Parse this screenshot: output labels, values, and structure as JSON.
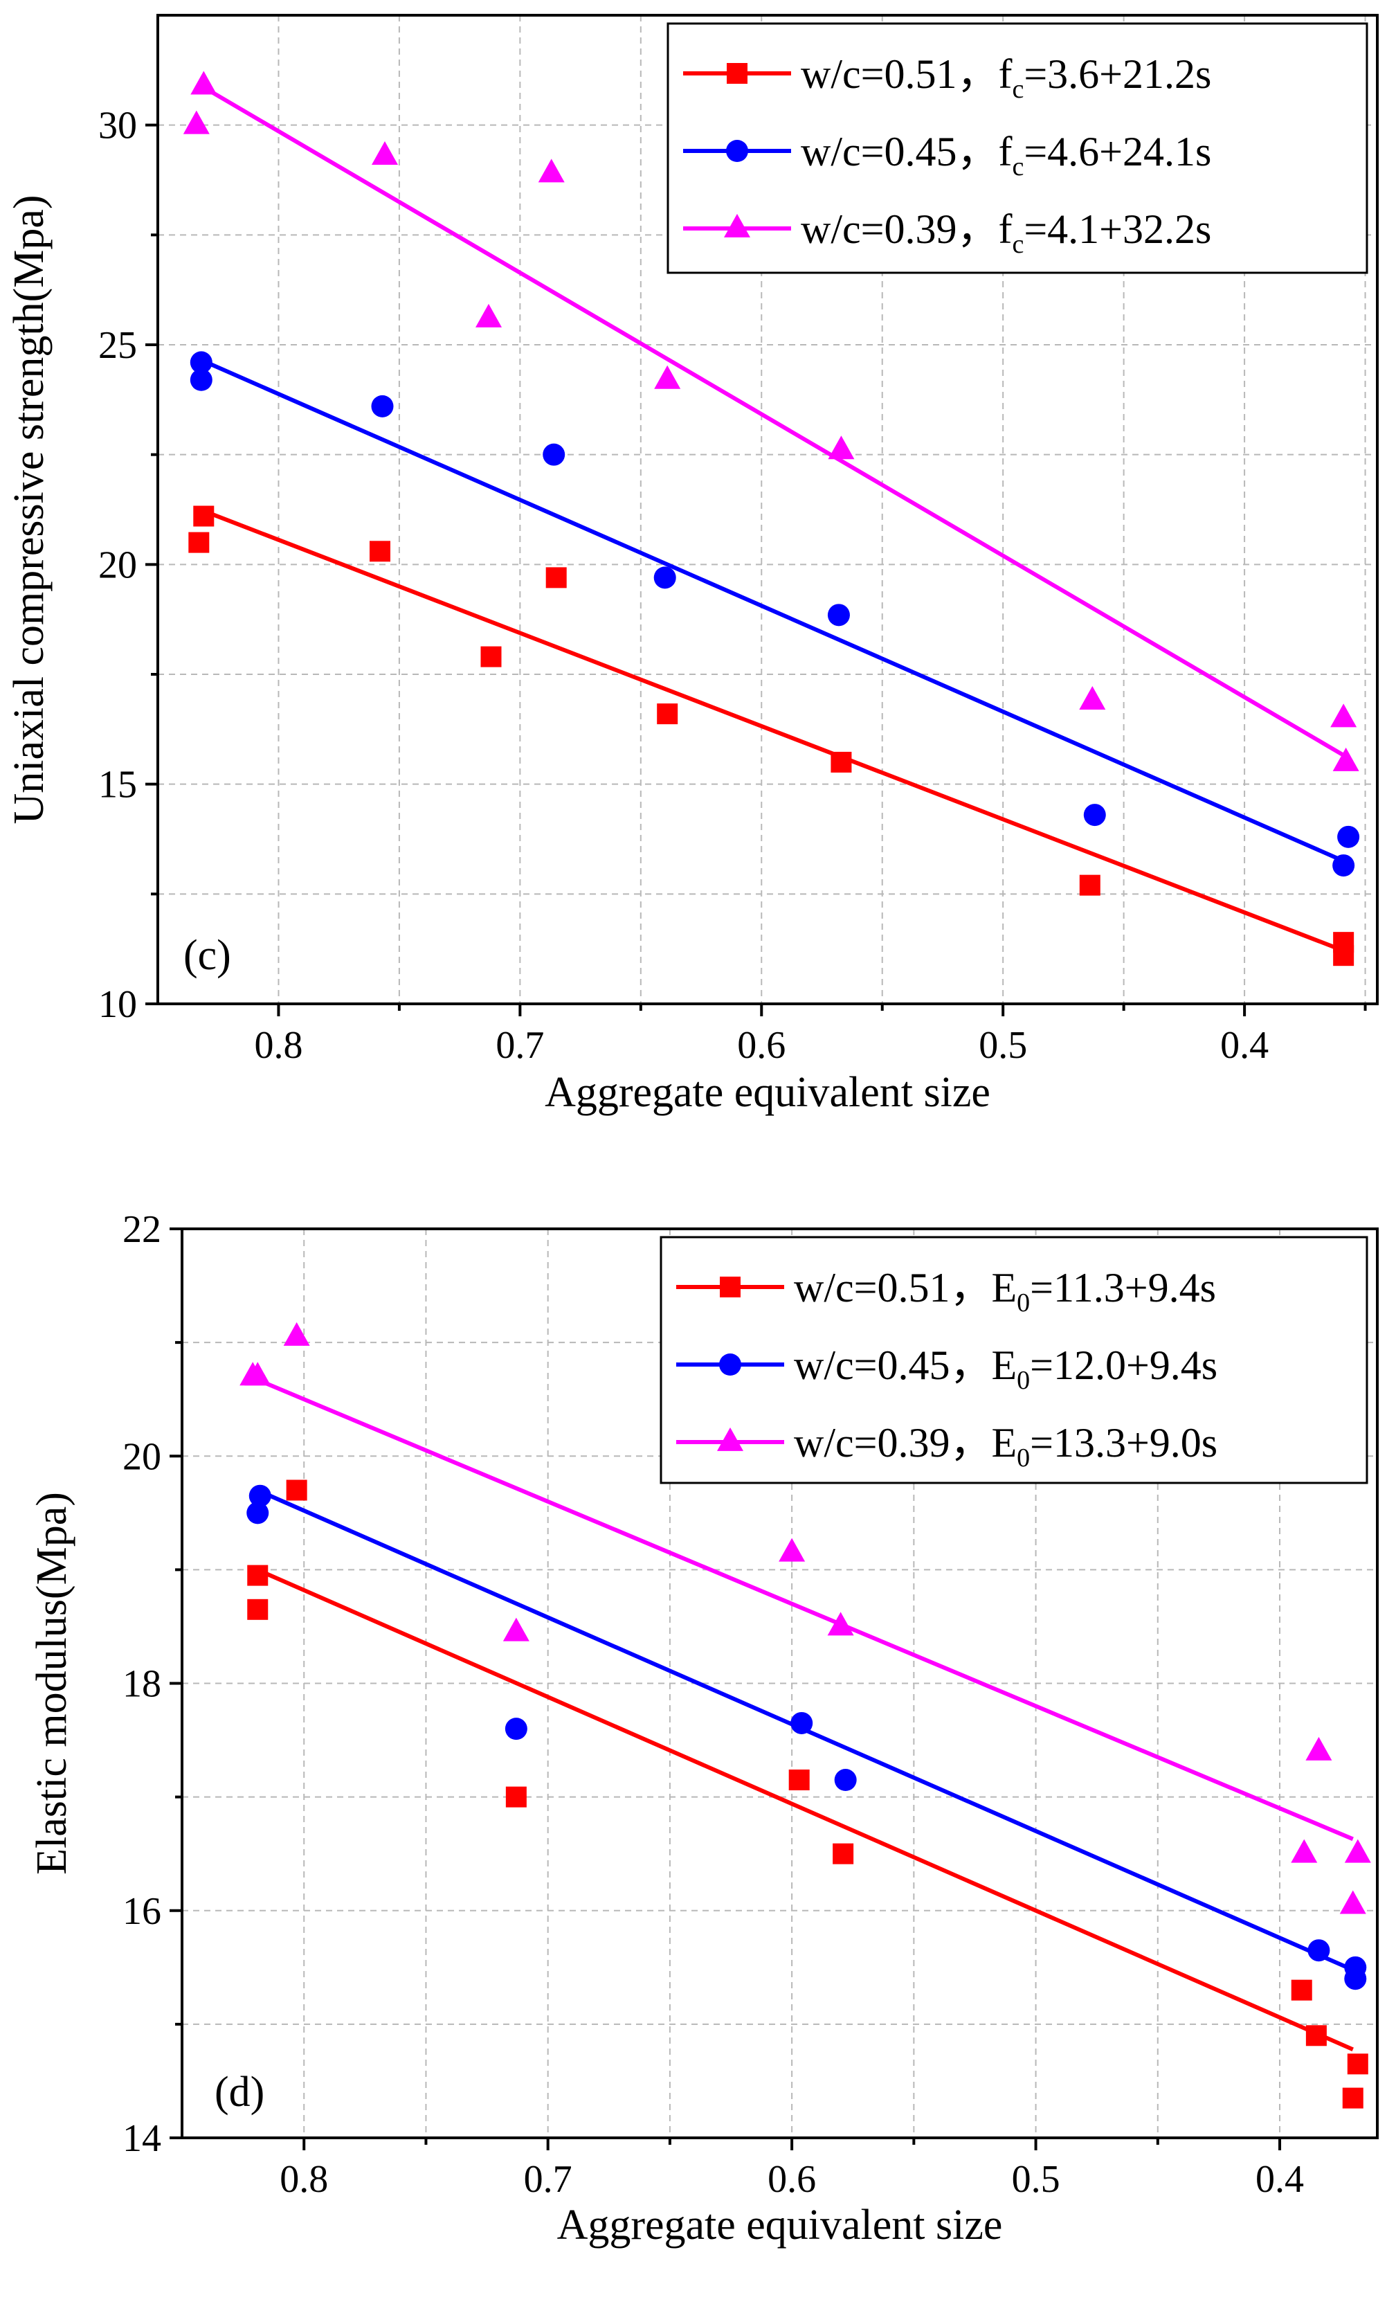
{
  "chart_data": [
    {
      "type": "scatter",
      "panel_label": "(c)",
      "xlabel": "Aggregate equivalent size",
      "ylabel": "Uniaxial compressive strength(Mpa)",
      "xlim": [
        0.85,
        0.345
      ],
      "ylim": [
        10,
        32.5
      ],
      "x_ticks": [
        0.8,
        0.7,
        0.6,
        0.5,
        0.4
      ],
      "x_tick_labels": [
        "0.8",
        "0.7",
        "0.6",
        "0.5",
        "0.4"
      ],
      "y_ticks": [
        10,
        15,
        20,
        25,
        30
      ],
      "y_tick_labels": [
        "10",
        "15",
        "20",
        "25",
        "30"
      ],
      "legend_position": "top-right",
      "series": [
        {
          "name": "w/c=0.51",
          "marker": "square",
          "color": "#ff0000",
          "legend": {
            "prefix": "w/c=0.51，",
            "var": "f",
            "sub": "c",
            "eq": "=3.6+21.2s"
          },
          "points": [
            [
              0.833,
              20.5
            ],
            [
              0.831,
              21.1
            ],
            [
              0.758,
              20.3
            ],
            [
              0.712,
              17.9
            ],
            [
              0.685,
              19.7
            ],
            [
              0.639,
              16.6
            ],
            [
              0.567,
              15.5
            ],
            [
              0.464,
              12.7
            ],
            [
              0.359,
              11.4
            ],
            [
              0.359,
              11.1
            ]
          ],
          "fit": {
            "intercept": 3.6,
            "slope": 21.2,
            "x_range": [
              0.831,
              0.359
            ]
          }
        },
        {
          "name": "w/c=0.45",
          "marker": "circle",
          "color": "#0000ff",
          "legend": {
            "prefix": "w/c=0.45，",
            "var": "f",
            "sub": "c",
            "eq": "=4.6+24.1s"
          },
          "points": [
            [
              0.832,
              24.6
            ],
            [
              0.832,
              24.2
            ],
            [
              0.757,
              23.6
            ],
            [
              0.686,
              22.5
            ],
            [
              0.64,
              19.7
            ],
            [
              0.568,
              18.85
            ],
            [
              0.462,
              14.3
            ],
            [
              0.357,
              13.8
            ],
            [
              0.359,
              13.15
            ]
          ],
          "fit": {
            "intercept": 4.6,
            "slope": 24.1,
            "x_range": [
              0.831,
              0.359
            ]
          }
        },
        {
          "name": "w/c=0.39",
          "marker": "triangle",
          "color": "#ff00ff",
          "legend": {
            "prefix": "w/c=0.39，",
            "var": "f",
            "sub": "c",
            "eq": "=4.1+32.2s"
          },
          "points": [
            [
              0.834,
              30.0
            ],
            [
              0.831,
              30.9
            ],
            [
              0.756,
              29.3
            ],
            [
              0.713,
              25.6
            ],
            [
              0.687,
              28.9
            ],
            [
              0.639,
              24.2
            ],
            [
              0.567,
              22.6
            ],
            [
              0.463,
              16.9
            ],
            [
              0.359,
              16.5
            ],
            [
              0.358,
              15.5
            ]
          ],
          "fit": {
            "intercept": 4.1,
            "slope": 32.2,
            "x_range": [
              0.831,
              0.359
            ]
          }
        }
      ]
    },
    {
      "type": "scatter",
      "panel_label": "(d)",
      "xlabel": "Aggregate equivalent size",
      "ylabel": "Elastic modulus(Mpa)",
      "xlim": [
        0.85,
        0.36
      ],
      "ylim": [
        14,
        22
      ],
      "x_ticks": [
        0.8,
        0.7,
        0.6,
        0.5,
        0.4
      ],
      "x_tick_labels": [
        "0.8",
        "0.7",
        "0.6",
        "0.5",
        "0.4"
      ],
      "y_ticks": [
        14,
        16,
        18,
        20,
        22
      ],
      "y_tick_labels": [
        "14",
        "16",
        "18",
        "20",
        "22"
      ],
      "legend_position": "top-right",
      "series": [
        {
          "name": "w/c=0.51",
          "marker": "square",
          "color": "#ff0000",
          "legend": {
            "prefix": "w/c=0.51，",
            "var": "E",
            "sub": "0",
            "eq": "=11.3+9.4s"
          },
          "points": [
            [
              0.819,
              18.95
            ],
            [
              0.819,
              18.65
            ],
            [
              0.803,
              19.7
            ],
            [
              0.713,
              17.0
            ],
            [
              0.597,
              17.15
            ],
            [
              0.579,
              16.5
            ],
            [
              0.391,
              15.3
            ],
            [
              0.385,
              14.9
            ],
            [
              0.368,
              14.65
            ],
            [
              0.37,
              14.35
            ]
          ],
          "fit": {
            "intercept": 11.3,
            "slope": 9.4,
            "x_range": [
              0.819,
              0.37
            ]
          }
        },
        {
          "name": "w/c=0.45",
          "marker": "circle",
          "color": "#0000ff",
          "legend": {
            "prefix": "w/c=0.45，",
            "var": "E",
            "sub": "0",
            "eq": "=12.0+9.4s"
          },
          "points": [
            [
              0.818,
              19.65
            ],
            [
              0.819,
              19.5
            ],
            [
              0.713,
              17.6
            ],
            [
              0.596,
              17.65
            ],
            [
              0.578,
              17.15
            ],
            [
              0.384,
              15.65
            ],
            [
              0.369,
              15.5
            ],
            [
              0.369,
              15.4
            ]
          ],
          "fit": {
            "intercept": 12.0,
            "slope": 9.4,
            "x_range": [
              0.819,
              0.37
            ]
          }
        },
        {
          "name": "w/c=0.39",
          "marker": "triangle",
          "color": "#ff00ff",
          "legend": {
            "prefix": "w/c=0.39，",
            "var": "E",
            "sub": "0",
            "eq": "=13.3+9.0s"
          },
          "points": [
            [
              0.821,
              20.7
            ],
            [
              0.819,
              20.7
            ],
            [
              0.803,
              21.05
            ],
            [
              0.713,
              18.45
            ],
            [
              0.6,
              19.15
            ],
            [
              0.58,
              18.5
            ],
            [
              0.39,
              16.5
            ],
            [
              0.384,
              17.4
            ],
            [
              0.37,
              16.05
            ],
            [
              0.368,
              16.5
            ]
          ],
          "fit": {
            "intercept": 13.3,
            "slope": 9.0,
            "x_range": [
              0.819,
              0.37
            ]
          }
        }
      ]
    }
  ]
}
